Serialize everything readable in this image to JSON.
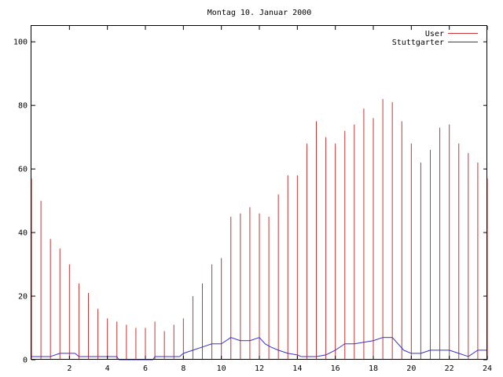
{
  "chart_data": {
    "type": "bar",
    "title": "Montag 10. Januar 2000",
    "xlabel": "",
    "ylabel": "",
    "xlim": [
      0,
      24
    ],
    "ylim": [
      0,
      105
    ],
    "x_ticks": [
      {
        "value": 2,
        "label": "2"
      },
      {
        "value": 4,
        "label": "4"
      },
      {
        "value": 6,
        "label": "6"
      },
      {
        "value": 8,
        "label": "8"
      },
      {
        "value": 10,
        "label": "10"
      },
      {
        "value": 12,
        "label": "12"
      },
      {
        "value": 14,
        "label": "14"
      },
      {
        "value": 16,
        "label": "16"
      },
      {
        "value": 18,
        "label": "18"
      },
      {
        "value": 20,
        "label": "20"
      },
      {
        "value": 22,
        "label": "22"
      },
      {
        "value": 24,
        "label": "24"
      }
    ],
    "y_ticks": [
      {
        "value": 0,
        "label": "0"
      },
      {
        "value": 20,
        "label": "20"
      },
      {
        "value": 40,
        "label": "40"
      },
      {
        "value": 60,
        "label": "60"
      },
      {
        "value": 80,
        "label": "80"
      },
      {
        "value": 100,
        "label": "100"
      }
    ],
    "grid": false,
    "legend_position": "top-right",
    "series": [
      {
        "name": "User",
        "style": "impulses",
        "color": "#cc3333",
        "points": [
          [
            0,
            57
          ],
          [
            0.5,
            50
          ],
          [
            1,
            38
          ],
          [
            1.5,
            35
          ],
          [
            2,
            30
          ],
          [
            2.5,
            24
          ],
          [
            3,
            21
          ],
          [
            3.5,
            16
          ],
          [
            4,
            13
          ],
          [
            4.5,
            12
          ],
          [
            5,
            11
          ],
          [
            5.5,
            10
          ],
          [
            6,
            10
          ],
          [
            6.5,
            12
          ],
          [
            7,
            9
          ],
          [
            7.5,
            11
          ],
          [
            8,
            13
          ],
          [
            8.5,
            20
          ],
          [
            9,
            24
          ],
          [
            9.5,
            30
          ],
          [
            10,
            32
          ],
          [
            10.5,
            45
          ],
          [
            11,
            46
          ],
          [
            11.5,
            48
          ],
          [
            12,
            46
          ],
          [
            12.5,
            45
          ],
          [
            13,
            52
          ],
          [
            13.5,
            58
          ],
          [
            14,
            58
          ],
          [
            14.5,
            68
          ],
          [
            15,
            75
          ],
          [
            15.5,
            70
          ],
          [
            16,
            68
          ],
          [
            16.5,
            72
          ],
          [
            17,
            74
          ],
          [
            17.5,
            79
          ],
          [
            18,
            76
          ],
          [
            18.5,
            82
          ],
          [
            19,
            81
          ],
          [
            19.5,
            75
          ],
          [
            20,
            68
          ],
          [
            20.5,
            62
          ],
          [
            21,
            66
          ],
          [
            21.5,
            73
          ],
          [
            22,
            74
          ],
          [
            22.5,
            68
          ],
          [
            23,
            65
          ],
          [
            23.5,
            62
          ],
          [
            24,
            57
          ]
        ]
      },
      {
        "name": "Stuttgarter",
        "style": "line",
        "color": "#3333cc",
        "points": [
          [
            0,
            1
          ],
          [
            1,
            1
          ],
          [
            1.5,
            2
          ],
          [
            2.3,
            2
          ],
          [
            2.5,
            1
          ],
          [
            4.5,
            1
          ],
          [
            4.6,
            0
          ],
          [
            6.4,
            0
          ],
          [
            6.5,
            1
          ],
          [
            7.8,
            1
          ],
          [
            8,
            2
          ],
          [
            8.5,
            3
          ],
          [
            9,
            4
          ],
          [
            9.5,
            5
          ],
          [
            10,
            5
          ],
          [
            10.5,
            7
          ],
          [
            11,
            6
          ],
          [
            11.5,
            6
          ],
          [
            12,
            7
          ],
          [
            12.3,
            5
          ],
          [
            12.6,
            4
          ],
          [
            13,
            3
          ],
          [
            13.5,
            2
          ],
          [
            14,
            1.5
          ],
          [
            14.2,
            1
          ],
          [
            15,
            1
          ],
          [
            15.5,
            1.5
          ],
          [
            16,
            3
          ],
          [
            16.5,
            5
          ],
          [
            17,
            5
          ],
          [
            17.5,
            5.5
          ],
          [
            18,
            6
          ],
          [
            18.5,
            7
          ],
          [
            19,
            7
          ],
          [
            19.3,
            5
          ],
          [
            19.6,
            3
          ],
          [
            20,
            2
          ],
          [
            20.5,
            2
          ],
          [
            21,
            3
          ],
          [
            21.5,
            3
          ],
          [
            22,
            3
          ],
          [
            22.5,
            2
          ],
          [
            23,
            1
          ],
          [
            23.5,
            3
          ],
          [
            24,
            3
          ]
        ]
      }
    ]
  }
}
